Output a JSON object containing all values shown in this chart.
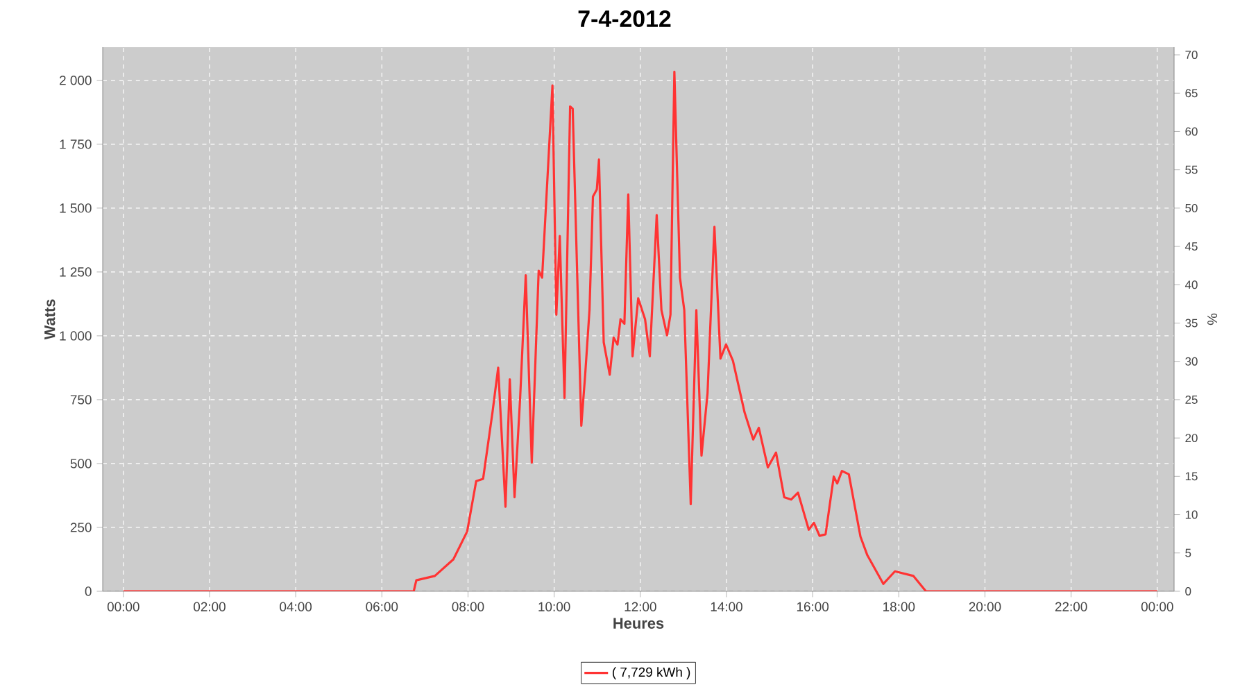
{
  "chart_data": {
    "type": "line",
    "title": "7-4-2012",
    "xlabel": "Heures",
    "ylabel": "Watts",
    "y2label": "%",
    "x": [
      0,
      6.74,
      6.8,
      7.23,
      7.66,
      7.98,
      8.19,
      8.35,
      8.57,
      8.7,
      8.87,
      8.97,
      9.08,
      9.21,
      9.34,
      9.48,
      9.64,
      9.72,
      9.96,
      10.05,
      10.13,
      10.24,
      10.37,
      10.43,
      10.63,
      10.72,
      10.82,
      10.9,
      10.99,
      11.04,
      11.15,
      11.29,
      11.38,
      11.47,
      11.54,
      11.63,
      11.72,
      11.82,
      11.95,
      12.11,
      12.22,
      12.38,
      12.49,
      12.62,
      12.7,
      12.79,
      12.92,
      13.02,
      13.17,
      13.3,
      13.42,
      13.56,
      13.72,
      13.86,
      13.99,
      14.15,
      14.42,
      14.62,
      14.75,
      14.96,
      15.15,
      15.34,
      15.5,
      15.66,
      15.91,
      16.03,
      16.16,
      16.3,
      16.49,
      16.57,
      16.68,
      16.84,
      17.11,
      17.27,
      17.64,
      17.91,
      18.34,
      18.63,
      24
    ],
    "series": [
      {
        "name": "( 7,729 kWh )",
        "color": "#ff3333",
        "values": [
          0,
          0,
          43,
          60,
          125,
          234,
          431,
          440,
          703,
          875,
          331,
          830,
          368,
          757,
          1237,
          504,
          1255,
          1228,
          1980,
          1083,
          1391,
          757,
          1898,
          1889,
          648,
          848,
          1101,
          1545,
          1573,
          1690,
          975,
          848,
          993,
          966,
          1065,
          1047,
          1554,
          920,
          1147,
          1065,
          920,
          1473,
          1101,
          1002,
          1083,
          2034,
          1228,
          1101,
          341,
          1101,
          531,
          775,
          1427,
          911,
          966,
          902,
          700,
          594,
          640,
          485,
          543,
          368,
          359,
          386,
          241,
          268,
          217,
          223,
          449,
          422,
          471,
          458,
          214,
          141,
          29,
          78,
          60,
          0,
          0
        ]
      }
    ],
    "xlim": [
      -0.48,
      24.39
    ],
    "ylim": [
      0,
      2130
    ],
    "y2lim": [
      0,
      71
    ],
    "xticks": [
      {
        "value": 0,
        "label": "00:00"
      },
      {
        "value": 2,
        "label": "02:00"
      },
      {
        "value": 4,
        "label": "04:00"
      },
      {
        "value": 6,
        "label": "06:00"
      },
      {
        "value": 8,
        "label": "08:00"
      },
      {
        "value": 10,
        "label": "10:00"
      },
      {
        "value": 12,
        "label": "12:00"
      },
      {
        "value": 14,
        "label": "14:00"
      },
      {
        "value": 16,
        "label": "16:00"
      },
      {
        "value": 18,
        "label": "18:00"
      },
      {
        "value": 20,
        "label": "20:00"
      },
      {
        "value": 22,
        "label": "22:00"
      },
      {
        "value": 24,
        "label": "00:00"
      }
    ],
    "yticks": [
      0,
      250,
      500,
      750,
      {
        "value": 1000,
        "label": "1 000"
      },
      {
        "value": 1250,
        "label": "1 250"
      },
      {
        "value": 1500,
        "label": "1 500"
      },
      {
        "value": 1750,
        "label": "1 750"
      },
      {
        "value": 2000,
        "label": "2 000"
      }
    ],
    "y2ticks": [
      0,
      5,
      10,
      15,
      20,
      25,
      30,
      35,
      40,
      45,
      50,
      55,
      60,
      65,
      70
    ],
    "grid": true,
    "legend": "bottom",
    "marker": "none",
    "line_style": "solid"
  }
}
